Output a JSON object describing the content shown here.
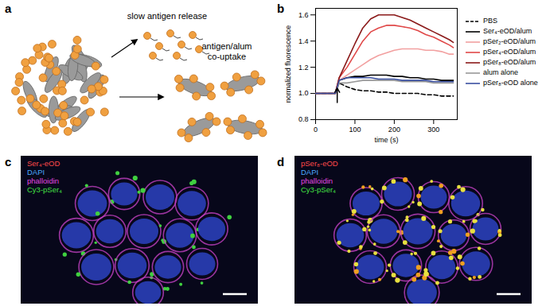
{
  "figure": {
    "panel_labels": [
      "a",
      "b",
      "c",
      "d"
    ],
    "panel_a": {
      "release_label": "slow antigen release",
      "co_uptake_label": [
        "antigen/alum",
        "co-uptake"
      ]
    },
    "panel_c": {
      "channels": [
        {
          "label": "Ser₄-eOD",
          "color": "#ff4a4a"
        },
        {
          "label": "DAPI",
          "color": "#4aa8ff"
        },
        {
          "label": "phalloidin",
          "color": "#e048e0"
        },
        {
          "label": "Cy3-pSer₄",
          "color": "#44e044"
        }
      ]
    },
    "panel_d": {
      "channels": [
        {
          "label": "pSer₈-eOD",
          "color": "#ff4a4a"
        },
        {
          "label": "DAPI",
          "color": "#4aa8ff"
        },
        {
          "label": "phalloidin",
          "color": "#e048e0"
        },
        {
          "label": "Cy3-pSer₄",
          "color": "#44e044"
        }
      ]
    }
  },
  "chart_data": {
    "type": "line",
    "x_label": "time (s)",
    "y_label": "normalized fluorescence",
    "x": [
      0,
      20,
      40,
      50,
      60,
      80,
      100,
      120,
      140,
      160,
      180,
      200,
      220,
      240,
      260,
      280,
      300,
      320,
      340,
      350
    ],
    "xlim": [
      0,
      360
    ],
    "xticks": [
      0,
      100,
      200,
      300
    ],
    "ylim": [
      0.8,
      1.65
    ],
    "yticks": [
      0.8,
      {
        "value": 1,
        "label": "1.0"
      },
      1.2,
      1.4,
      1.6
    ],
    "legend": "right",
    "arrow": {
      "x": 55,
      "y_from": 0.93,
      "y_to": 1.04
    },
    "series": [
      {
        "name": "PBS",
        "color": "#000000",
        "line_style": "dashed",
        "values": [
          1.0,
          1.0,
          1.0,
          1.0,
          1.08,
          1.05,
          1.03,
          1.02,
          1.02,
          1.01,
          1.01,
          1.0,
          1.0,
          1.0,
          1.0,
          0.99,
          0.99,
          0.98,
          0.98,
          0.98
        ]
      },
      {
        "name": "Ser₄-eOD/alum",
        "color": "#000000",
        "line_style": "solid",
        "values": [
          1.0,
          1.0,
          1.0,
          1.0,
          1.1,
          1.12,
          1.13,
          1.13,
          1.14,
          1.14,
          1.14,
          1.13,
          1.13,
          1.12,
          1.12,
          1.11,
          1.11,
          1.1,
          1.1,
          1.1
        ]
      },
      {
        "name": "pSer₂-eOD/alum",
        "color": "#f2a0a0",
        "line_style": "solid",
        "values": [
          1.0,
          1.0,
          1.0,
          1.0,
          1.1,
          1.14,
          1.18,
          1.22,
          1.26,
          1.29,
          1.31,
          1.33,
          1.34,
          1.34,
          1.34,
          1.33,
          1.33,
          1.32,
          1.3,
          1.3
        ]
      },
      {
        "name": "pSer₄-eOD/alum",
        "color": "#e04848",
        "line_style": "solid",
        "values": [
          1.0,
          1.0,
          1.0,
          1.0,
          1.12,
          1.2,
          1.3,
          1.4,
          1.47,
          1.5,
          1.52,
          1.52,
          1.51,
          1.5,
          1.48,
          1.45,
          1.43,
          1.4,
          1.37,
          1.35
        ]
      },
      {
        "name": "pSer₈-eOD/alum",
        "color": "#8b1a1a",
        "line_style": "solid",
        "values": [
          1.0,
          1.0,
          1.0,
          1.0,
          1.12,
          1.25,
          1.38,
          1.5,
          1.57,
          1.6,
          1.6,
          1.6,
          1.58,
          1.56,
          1.53,
          1.5,
          1.47,
          1.44,
          1.41,
          1.39
        ]
      },
      {
        "name": "alum alone",
        "color": "#999999",
        "line_style": "solid",
        "values": [
          1.0,
          1.0,
          1.0,
          1.0,
          1.08,
          1.08,
          1.09,
          1.1,
          1.1,
          1.1,
          1.1,
          1.1,
          1.09,
          1.09,
          1.09,
          1.09,
          1.08,
          1.08,
          1.08,
          1.08
        ]
      },
      {
        "name": "pSer₈-eOD alone",
        "color": "#3a4fa0",
        "line_style": "solid",
        "values": [
          1.0,
          1.0,
          1.0,
          1.0,
          1.1,
          1.12,
          1.12,
          1.12,
          1.12,
          1.11,
          1.11,
          1.11,
          1.1,
          1.1,
          1.1,
          1.1,
          1.09,
          1.09,
          1.09,
          1.09
        ]
      }
    ]
  }
}
